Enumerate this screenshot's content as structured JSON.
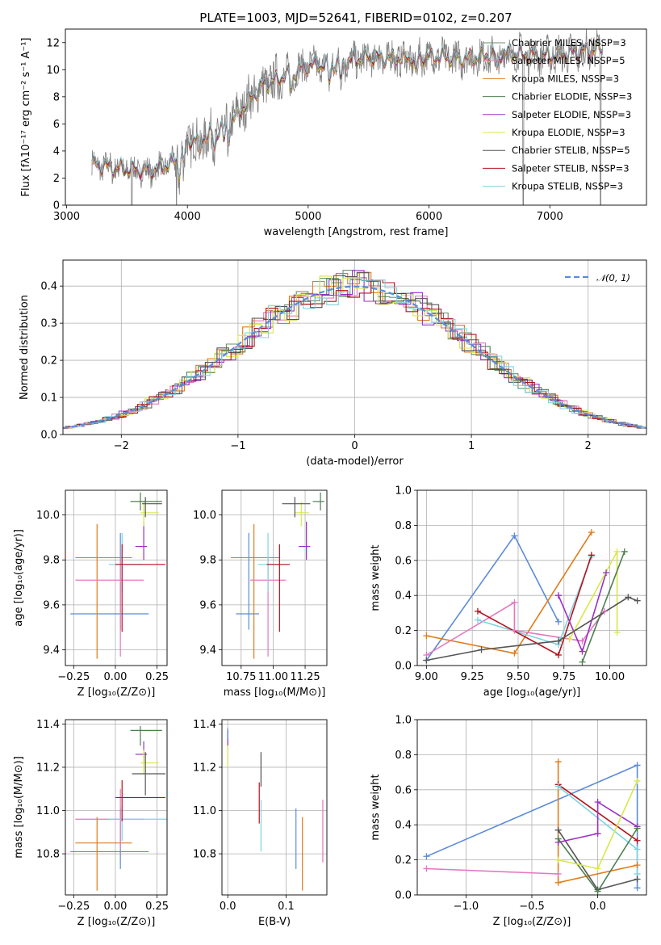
{
  "colors": {
    "chabrier_miles": "#6b8e6b",
    "salpeter_miles": "#e377c2",
    "kroupa_miles": "#e07b1a",
    "chabrier_elodie": "#4f7f4f",
    "salpeter_elodie": "#9b30c6",
    "kroupa_elodie": "#d8e84a",
    "chabrier_stelib": "#555555",
    "salpeter_stelib": "#b5121b",
    "kroupa_stelib": "#7fd3e0",
    "normal": "#5b8bd9",
    "spectrum": "#808080",
    "grid": "#b0b0b0"
  },
  "chart_data": [
    {
      "id": "spectrum",
      "type": "line",
      "title": "PLATE=1003, MJD=52641, FIBERID=0102, z=0.207",
      "xlabel": "wavelength [Angstrom, rest frame]",
      "ylabel": "Flux [fλ10⁻¹⁷ erg cm⁻² s⁻¹ A⁻¹]",
      "xlim": [
        2990,
        7800
      ],
      "ylim": [
        0,
        13
      ],
      "xticks": [
        3000,
        4000,
        5000,
        6000,
        7000
      ],
      "yticks": [
        0,
        2,
        4,
        6,
        8,
        10,
        12
      ],
      "grid": false,
      "legend_position": "upper right",
      "continuum": [
        [
          3210,
          3.0
        ],
        [
          3450,
          2.7
        ],
        [
          3700,
          2.5
        ],
        [
          3900,
          3.2
        ],
        [
          4000,
          4.7
        ],
        [
          4200,
          5.2
        ],
        [
          4400,
          6.5
        ],
        [
          4600,
          8.7
        ],
        [
          4800,
          9.5
        ],
        [
          5000,
          10.3
        ],
        [
          5200,
          10.4
        ],
        [
          5500,
          10.9
        ],
        [
          5800,
          10.8
        ],
        [
          6000,
          11.0
        ],
        [
          6300,
          10.8
        ],
        [
          6600,
          11.2
        ],
        [
          7000,
          11.0
        ],
        [
          7400,
          11.5
        ]
      ],
      "series": [
        {
          "name": "Chabrier MILES, N_SSP=3",
          "key": "chabrier_miles"
        },
        {
          "name": "Salpeter MILES, N_SSP=5",
          "key": "salpeter_miles"
        },
        {
          "name": "Kroupa MILES, N_SSP=3",
          "key": "kroupa_miles"
        },
        {
          "name": "Chabrier ELODIE, N_SSP=3",
          "key": "chabrier_elodie"
        },
        {
          "name": "Salpeter ELODIE, N_SSP=3",
          "key": "salpeter_elodie"
        },
        {
          "name": "Kroupa ELODIE, N_SSP=3",
          "key": "kroupa_elodie"
        },
        {
          "name": "Chabrier STELIB, N_SSP=5",
          "key": "chabrier_stelib"
        },
        {
          "name": "Salpeter STELIB, N_SSP=3",
          "key": "salpeter_stelib"
        },
        {
          "name": "Kroupa STELIB, N_SSP=3",
          "key": "kroupa_stelib"
        }
      ]
    },
    {
      "id": "hist",
      "type": "bar",
      "xlabel": "(data-model)/error",
      "ylabel": "Normed distribution",
      "xlim": [
        -2.5,
        2.5
      ],
      "ylim": [
        0,
        0.47
      ],
      "xticks": [
        -2,
        -1,
        0,
        1,
        2
      ],
      "yticks": [
        0.0,
        0.1,
        0.2,
        0.3,
        0.4
      ],
      "grid": true,
      "bin_width": 0.1,
      "reference": {
        "name": "𝒩(0, 1)",
        "mean": 0,
        "sigma": 1
      },
      "legend_position": "upper right"
    },
    {
      "id": "z_age",
      "type": "scatter",
      "xlabel": "Z [log₁₀(Z/Z⊙)]",
      "ylabel": "age  [log₁₀(age/yr)]",
      "xlim": [
        -0.3,
        0.31
      ],
      "ylim": [
        9.33,
        10.11
      ],
      "xticks": [
        -0.25,
        0.0,
        0.25
      ],
      "yticks": [
        9.4,
        9.6,
        9.8,
        10.0
      ],
      "grid": true,
      "points": [
        {
          "key": "normal",
          "x": 0.03,
          "y": 9.56,
          "xerr": [
            0.3,
            0.17
          ],
          "yerr": [
            0.07,
            0.36
          ]
        },
        {
          "key": "kroupa_miles",
          "x": -0.11,
          "y": 9.81,
          "xerr": [
            0.13,
            0.21
          ],
          "yerr": [
            0.45,
            0.15
          ]
        },
        {
          "key": "salpeter_miles",
          "x": 0.03,
          "y": 9.71,
          "xerr": [
            0.27,
            0.14
          ],
          "yerr": [
            0.34,
            0.1
          ]
        },
        {
          "key": "kroupa_stelib",
          "x": 0.04,
          "y": 9.78,
          "xerr": [
            0.08,
            0.12
          ],
          "yerr": [
            0.12,
            0.14
          ]
        },
        {
          "key": "salpeter_stelib",
          "x": 0.04,
          "y": 9.78,
          "xerr": [
            0.04,
            0.26
          ],
          "yerr": [
            0.3,
            0.09
          ]
        },
        {
          "key": "salpeter_elodie",
          "x": 0.17,
          "y": 9.86,
          "xerr": [
            0.05,
            0.02
          ],
          "yerr": [
            0.06,
            0.11
          ]
        },
        {
          "key": "kroupa_elodie",
          "x": 0.17,
          "y": 10.01,
          "xerr": [
            0.02,
            0.09
          ],
          "yerr": [
            0.06,
            0.05
          ]
        },
        {
          "key": "chabrier_elodie",
          "x": 0.15,
          "y": 10.06,
          "xerr": [
            0.06,
            0.13
          ],
          "yerr": [
            0.04,
            0.04
          ]
        },
        {
          "key": "chabrier_stelib",
          "x": 0.18,
          "y": 10.05,
          "xerr": [
            0.02,
            0.1
          ],
          "yerr": [
            0.06,
            0.03
          ]
        }
      ]
    },
    {
      "id": "mass_age",
      "type": "scatter",
      "xlabel": "mass [log₁₀(M/M⊙)]",
      "ylabel": "",
      "xlim": [
        10.6,
        11.42
      ],
      "ylim": [
        9.33,
        10.11
      ],
      "xticks": [
        10.75,
        11.0,
        11.25
      ],
      "yticks": [
        9.4,
        9.6,
        9.8,
        10.0
      ],
      "grid": true,
      "points": [
        {
          "key": "normal",
          "x": 10.81,
          "y": 9.56,
          "xerr": [
            0.1,
            0.08
          ],
          "yerr": [
            0.07,
            0.36
          ]
        },
        {
          "key": "kroupa_miles",
          "x": 10.85,
          "y": 9.81,
          "xerr": [
            0.18,
            0.2
          ],
          "yerr": [
            0.45,
            0.15
          ]
        },
        {
          "key": "salpeter_miles",
          "x": 10.96,
          "y": 9.71,
          "xerr": [
            0.14,
            0.14
          ],
          "yerr": [
            0.34,
            0.1
          ]
        },
        {
          "key": "kroupa_stelib",
          "x": 10.96,
          "y": 9.78,
          "xerr": [
            0.08,
            0.1
          ],
          "yerr": [
            0.12,
            0.14
          ]
        },
        {
          "key": "salpeter_stelib",
          "x": 11.05,
          "y": 9.78,
          "xerr": [
            0.1,
            0.08
          ],
          "yerr": [
            0.3,
            0.09
          ]
        },
        {
          "key": "salpeter_elodie",
          "x": 11.26,
          "y": 9.86,
          "xerr": [
            0.06,
            0.03
          ],
          "yerr": [
            0.06,
            0.11
          ]
        },
        {
          "key": "kroupa_elodie",
          "x": 11.22,
          "y": 10.01,
          "xerr": [
            0.05,
            0.06
          ],
          "yerr": [
            0.06,
            0.05
          ]
        },
        {
          "key": "chabrier_elodie",
          "x": 11.37,
          "y": 10.06,
          "xerr": [
            0.06,
            0.03
          ],
          "yerr": [
            0.04,
            0.04
          ]
        },
        {
          "key": "chabrier_stelib",
          "x": 11.17,
          "y": 10.05,
          "xerr": [
            0.1,
            0.12
          ],
          "yerr": [
            0.06,
            0.03
          ]
        }
      ]
    },
    {
      "id": "age_weight",
      "type": "line",
      "xlabel": "age  [log₁₀(age/yr)]",
      "ylabel": "mass weight",
      "xlim": [
        8.95,
        10.2
      ],
      "ylim": [
        0,
        1
      ],
      "xticks": [
        9.0,
        9.25,
        9.5,
        9.75,
        10.0
      ],
      "yticks": [
        0.0,
        0.2,
        0.4,
        0.6,
        0.8,
        1.0
      ],
      "grid": true,
      "series": [
        {
          "key": "normal",
          "points": [
            [
              9.0,
              0.03
            ],
            [
              9.48,
              0.74
            ],
            [
              9.72,
              0.25
            ]
          ]
        },
        {
          "key": "kroupa_miles",
          "points": [
            [
              9.0,
              0.17
            ],
            [
              9.48,
              0.07
            ],
            [
              9.9,
              0.76
            ]
          ]
        },
        {
          "key": "salpeter_miles",
          "points": [
            [
              9.0,
              0.06
            ],
            [
              9.48,
              0.36
            ],
            [
              9.48,
              0.2
            ],
            [
              9.85,
              0.14
            ],
            [
              9.97,
              0.31
            ]
          ]
        },
        {
          "key": "kroupa_stelib",
          "points": [
            [
              9.28,
              0.26
            ],
            [
              9.72,
              0.12
            ],
            [
              9.9,
              0.62
            ]
          ]
        },
        {
          "key": "salpeter_stelib",
          "points": [
            [
              9.28,
              0.31
            ],
            [
              9.72,
              0.06
            ],
            [
              9.9,
              0.63
            ]
          ]
        },
        {
          "key": "salpeter_elodie",
          "points": [
            [
              9.72,
              0.4
            ],
            [
              9.85,
              0.08
            ],
            [
              9.98,
              0.53
            ]
          ]
        },
        {
          "key": "kroupa_elodie",
          "points": [
            [
              9.78,
              0.15
            ],
            [
              10.04,
              0.65
            ],
            [
              10.04,
              0.19
            ]
          ]
        },
        {
          "key": "chabrier_elodie",
          "points": [
            [
              9.85,
              0.02
            ],
            [
              10.08,
              0.65
            ]
          ]
        },
        {
          "key": "chabrier_stelib",
          "points": [
            [
              9.0,
              0.03
            ],
            [
              9.3,
              0.09
            ],
            [
              9.72,
              0.14
            ],
            [
              10.1,
              0.39
            ],
            [
              10.15,
              0.37
            ]
          ]
        }
      ]
    },
    {
      "id": "z_mass",
      "type": "scatter",
      "xlabel": "Z [log₁₀(Z/Z⊙)]",
      "ylabel": "mass [log₁₀(M/M⊙)]",
      "xlim": [
        -0.3,
        0.31
      ],
      "ylim": [
        10.61,
        11.42
      ],
      "xticks": [
        -0.25,
        0.0,
        0.25
      ],
      "yticks": [
        10.8,
        11.0,
        11.2,
        11.4
      ],
      "grid": true,
      "points": [
        {
          "key": "normal",
          "x": 0.03,
          "y": 10.81,
          "xerr": [
            0.3,
            0.17
          ],
          "yerr": [
            0.08,
            0.2
          ]
        },
        {
          "key": "kroupa_miles",
          "x": -0.11,
          "y": 10.85,
          "xerr": [
            0.13,
            0.21
          ],
          "yerr": [
            0.22,
            0.12
          ]
        },
        {
          "key": "salpeter_miles",
          "x": 0.03,
          "y": 10.96,
          "xerr": [
            0.27,
            0.14
          ],
          "yerr": [
            0.14,
            0.14
          ]
        },
        {
          "key": "kroupa_stelib",
          "x": 0.04,
          "y": 10.96,
          "xerr": [
            0.08,
            0.27
          ],
          "yerr": [
            0.1,
            0.06
          ]
        },
        {
          "key": "salpeter_stelib",
          "x": 0.04,
          "y": 11.06,
          "xerr": [
            0.04,
            0.26
          ],
          "yerr": [
            0.11,
            0.08
          ]
        },
        {
          "key": "salpeter_elodie",
          "x": 0.17,
          "y": 11.26,
          "xerr": [
            0.05,
            0.02
          ],
          "yerr": [
            0.04,
            0.06
          ]
        },
        {
          "key": "kroupa_elodie",
          "x": 0.17,
          "y": 11.22,
          "xerr": [
            0.02,
            0.09
          ],
          "yerr": [
            0.05,
            0.06
          ]
        },
        {
          "key": "chabrier_elodie",
          "x": 0.15,
          "y": 11.37,
          "xerr": [
            0.06,
            0.13
          ],
          "yerr": [
            0.07,
            0.02
          ]
        },
        {
          "key": "chabrier_stelib",
          "x": 0.18,
          "y": 11.17,
          "xerr": [
            0.08,
            0.12
          ],
          "yerr": [
            0.1,
            0.1
          ]
        }
      ]
    },
    {
      "id": "ebv_mass",
      "type": "scatter",
      "xlabel": "E(B-V)",
      "ylabel": "",
      "xlim": [
        -0.01,
        0.17
      ],
      "ylim": [
        10.61,
        11.42
      ],
      "xticks": [
        0.0,
        0.1
      ],
      "yticks": [
        10.8,
        11.0,
        11.2,
        11.4
      ],
      "grid": true,
      "points": [
        {
          "key": "normal",
          "x": 0.117,
          "y": 10.81,
          "yerr": [
            0.08,
            0.2
          ]
        },
        {
          "key": "kroupa_miles",
          "x": 0.128,
          "y": 10.85,
          "yerr": [
            0.22,
            0.12
          ]
        },
        {
          "key": "salpeter_miles",
          "x": 0.163,
          "y": 10.96,
          "yerr": [
            0.2,
            0.09
          ]
        },
        {
          "key": "kroupa_stelib",
          "x": 0.057,
          "y": 10.96,
          "yerr": [
            0.15,
            0.09
          ]
        },
        {
          "key": "salpeter_stelib",
          "x": 0.054,
          "y": 11.06,
          "yerr": [
            0.12,
            0.07
          ]
        },
        {
          "key": "chabrier_stelib",
          "x": 0.057,
          "y": 11.17,
          "yerr": [
            0.06,
            0.1
          ]
        },
        {
          "key": "kroupa_elodie",
          "x": 0.0,
          "y": 11.26,
          "yerr": [
            0.06,
            0.07
          ]
        },
        {
          "key": "salpeter_elodie",
          "x": 0.0,
          "y": 11.33,
          "yerr": [
            0.03,
            0.04
          ]
        },
        {
          "key": "normal",
          "x": 0.0,
          "y": 11.35,
          "yerr": [
            0.02,
            0.03
          ]
        }
      ]
    },
    {
      "id": "z_weight",
      "type": "line",
      "xlabel": "Z [log₁₀(Z/Z⊙)]",
      "ylabel": "mass weight",
      "xlim": [
        -1.37,
        0.37
      ],
      "ylim": [
        0,
        1
      ],
      "xticks": [
        -1.0,
        -0.5,
        0.0
      ],
      "yticks": [
        0.0,
        0.2,
        0.4,
        0.6,
        0.8,
        1.0
      ],
      "grid": true,
      "series": [
        {
          "key": "normal",
          "points": [
            [
              -1.3,
              0.22
            ],
            [
              0.3,
              0.74
            ],
            [
              0.3,
              0.04
            ]
          ]
        },
        {
          "key": "salpeter_miles",
          "points": [
            [
              -1.3,
              0.15
            ],
            [
              -0.3,
              0.12
            ]
          ]
        },
        {
          "key": "kroupa_miles",
          "points": [
            [
              -0.3,
              0.76
            ],
            [
              -0.3,
              0.07
            ],
            [
              0.3,
              0.17
            ]
          ]
        },
        {
          "key": "salpeter_stelib",
          "points": [
            [
              -0.3,
              0.63
            ],
            [
              0.3,
              0.31
            ]
          ]
        },
        {
          "key": "kroupa_stelib",
          "points": [
            [
              -0.3,
              0.62
            ],
            [
              0.3,
              0.26
            ],
            [
              0.3,
              0.12
            ]
          ]
        },
        {
          "key": "chabrier_stelib",
          "points": [
            [
              -0.3,
              0.37
            ],
            [
              0.0,
              0.03
            ],
            [
              0.3,
              0.09
            ]
          ]
        },
        {
          "key": "salpeter_elodie",
          "points": [
            [
              -0.3,
              0.3
            ],
            [
              0.0,
              0.35
            ],
            [
              0.0,
              0.53
            ],
            [
              0.3,
              0.39
            ]
          ]
        },
        {
          "key": "chabrier_elodie",
          "points": [
            [
              -0.3,
              0.32
            ],
            [
              0.0,
              0.02
            ],
            [
              0.3,
              0.38
            ]
          ]
        },
        {
          "key": "kroupa_elodie",
          "points": [
            [
              -0.3,
              0.2
            ],
            [
              0.0,
              0.15
            ],
            [
              0.3,
              0.65
            ]
          ]
        }
      ]
    }
  ]
}
